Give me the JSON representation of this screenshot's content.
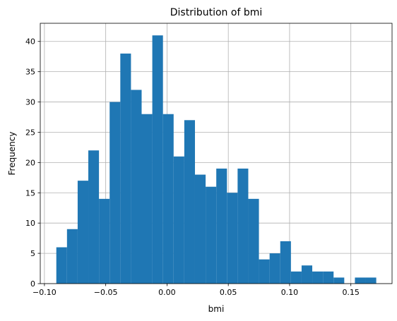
{
  "chart_data": {
    "type": "bar",
    "title": "Distribution of bmi",
    "xlabel": "bmi",
    "ylabel": "Frequency",
    "xlim": [
      -0.1034,
      0.1836
    ],
    "ylim": [
      0,
      43
    ],
    "grid": true,
    "bar_color": "#1f77b4",
    "bin_edges": [
      -0.0903,
      -0.0816,
      -0.0729,
      -0.0642,
      -0.0555,
      -0.0468,
      -0.0381,
      -0.0294,
      -0.0207,
      -0.012,
      -0.0033,
      0.0054,
      0.0141,
      0.0228,
      0.0315,
      0.0402,
      0.0489,
      0.0576,
      0.0663,
      0.075,
      0.0837,
      0.0924,
      0.1011,
      0.1098,
      0.1185,
      0.1272,
      0.1359,
      0.1446,
      0.1533,
      0.162,
      0.1707
    ],
    "counts": [
      6,
      9,
      17,
      22,
      14,
      30,
      38,
      32,
      28,
      41,
      28,
      21,
      27,
      18,
      16,
      19,
      15,
      19,
      14,
      4,
      5,
      7,
      2,
      3,
      2,
      2,
      1,
      0,
      1,
      1
    ],
    "xticks": [
      -0.1,
      -0.05,
      0.0,
      0.05,
      0.1,
      0.15
    ],
    "xtick_labels": [
      "−0.10",
      "−0.05",
      "0.00",
      "0.05",
      "0.10",
      "0.15"
    ],
    "yticks": [
      0,
      5,
      10,
      15,
      20,
      25,
      30,
      35,
      40
    ],
    "ytick_labels": [
      "0",
      "5",
      "10",
      "15",
      "20",
      "25",
      "30",
      "35",
      "40"
    ]
  }
}
